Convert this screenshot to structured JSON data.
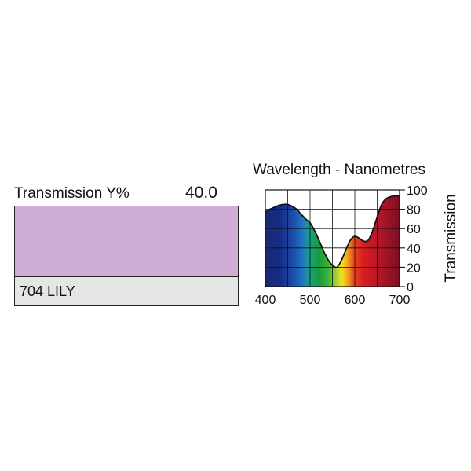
{
  "swatch": {
    "transmission_label": "Transmission Y%",
    "transmission_value": "40.0",
    "color": "#cfaed6",
    "filter_name": "704 LILY"
  },
  "chart_data": {
    "type": "area",
    "title": "Wavelength - Nanometres",
    "xlabel": "",
    "ylabel": "Transmission",
    "xlim": [
      400,
      700
    ],
    "ylim": [
      0,
      100
    ],
    "xticks": [
      400,
      500,
      600,
      700
    ],
    "yticks": [
      0,
      20,
      40,
      60,
      80,
      100
    ],
    "grid": true,
    "x": [
      400,
      410,
      420,
      430,
      440,
      450,
      460,
      470,
      480,
      490,
      500,
      510,
      520,
      530,
      540,
      550,
      560,
      570,
      580,
      590,
      600,
      610,
      620,
      630,
      640,
      650,
      660,
      670,
      680,
      690,
      700
    ],
    "y": [
      77,
      80,
      82,
      84,
      85,
      85,
      83,
      80,
      75,
      70,
      66,
      58,
      48,
      37,
      28,
      22,
      20,
      27,
      38,
      48,
      52,
      50,
      47,
      48,
      58,
      72,
      85,
      91,
      93,
      94,
      94
    ]
  }
}
